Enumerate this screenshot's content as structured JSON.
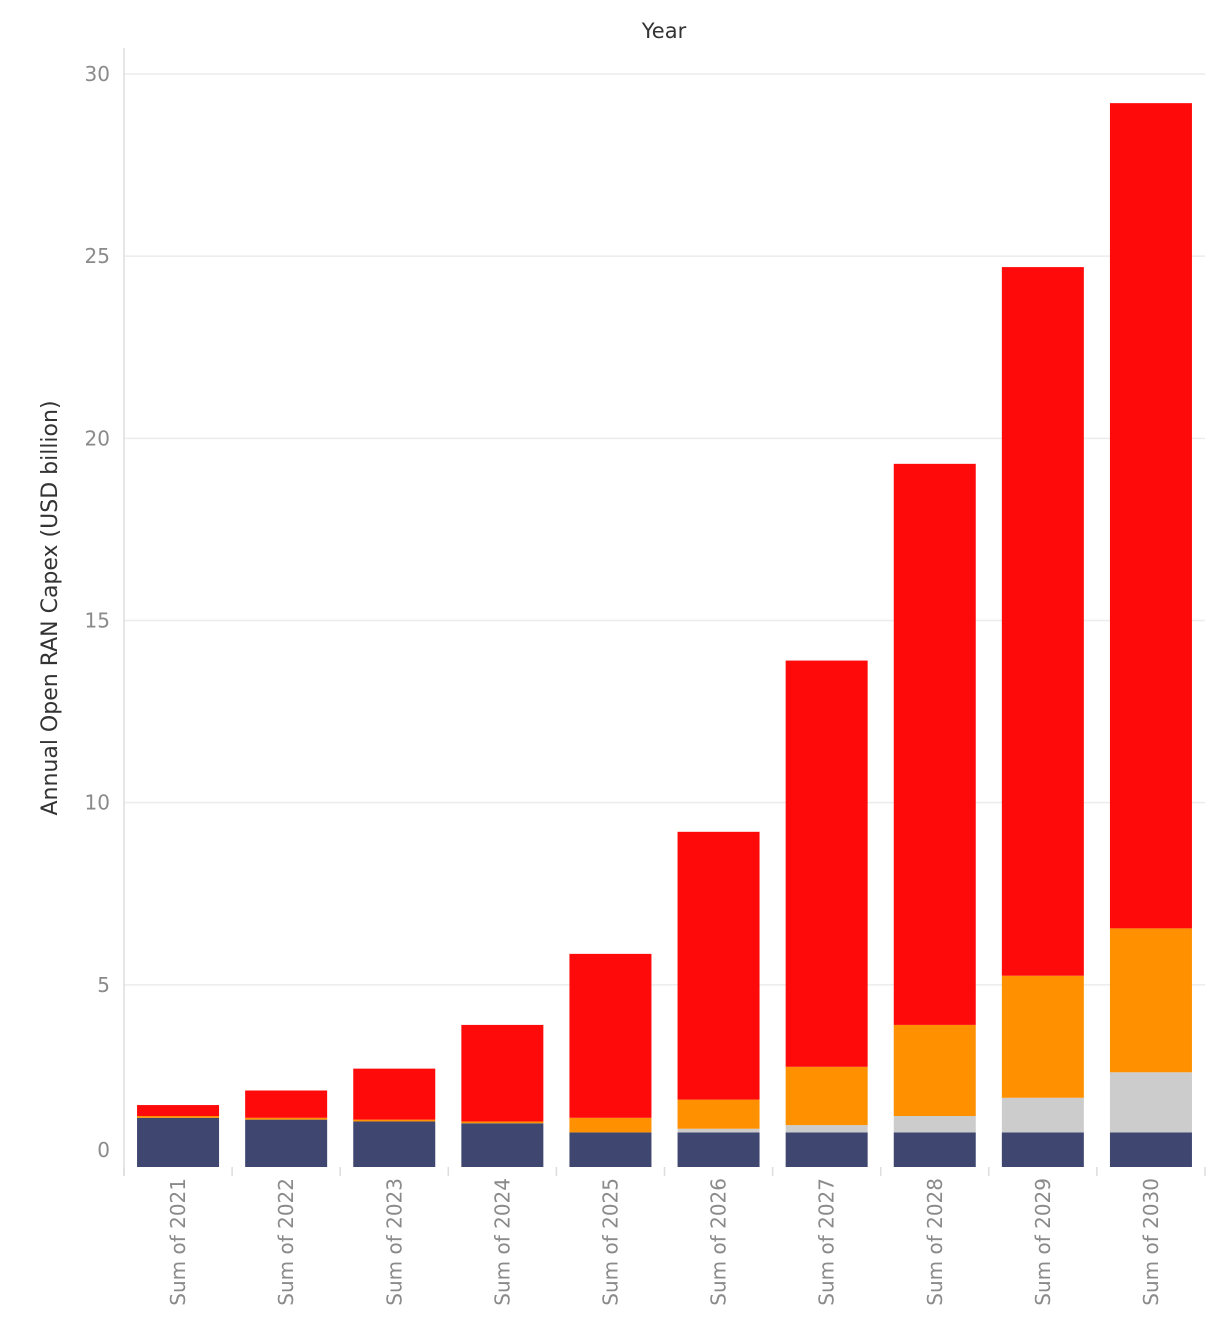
{
  "chart_data": {
    "type": "bar",
    "stacked": true,
    "title": "Year",
    "xlabel": "",
    "ylabel": "Annual Open RAN Capex (USD billion)",
    "ylim": [
      0,
      30
    ],
    "yticks": [
      0,
      5,
      10,
      15,
      20,
      25,
      30
    ],
    "grid": true,
    "legend": "none",
    "categories": [
      "Sum of 2021",
      "Sum of 2022",
      "Sum of 2023",
      "Sum of 2024",
      "Sum of 2025",
      "Sum of 2026",
      "Sum of 2027",
      "Sum of 2028",
      "Sum of 2029",
      "Sum of 2030"
    ],
    "series": [
      {
        "color": "#3f4670",
        "values": [
          1.35,
          1.3,
          1.25,
          1.2,
          0.95,
          0.95,
          0.95,
          0.95,
          0.95,
          0.95
        ]
      },
      {
        "color": "#cccccc",
        "values": [
          0.0,
          0.0,
          0.0,
          0.0,
          0.0,
          0.1,
          0.2,
          0.45,
          0.95,
          1.65
        ]
      },
      {
        "color": "#ff9000",
        "values": [
          0.05,
          0.05,
          0.05,
          0.05,
          0.4,
          0.8,
          1.6,
          2.5,
          3.35,
          3.95
        ]
      },
      {
        "color": "#ff0a0a",
        "values": [
          0.3,
          0.75,
          1.4,
          2.65,
          4.5,
          7.35,
          11.15,
          15.4,
          19.45,
          22.65
        ]
      }
    ]
  }
}
